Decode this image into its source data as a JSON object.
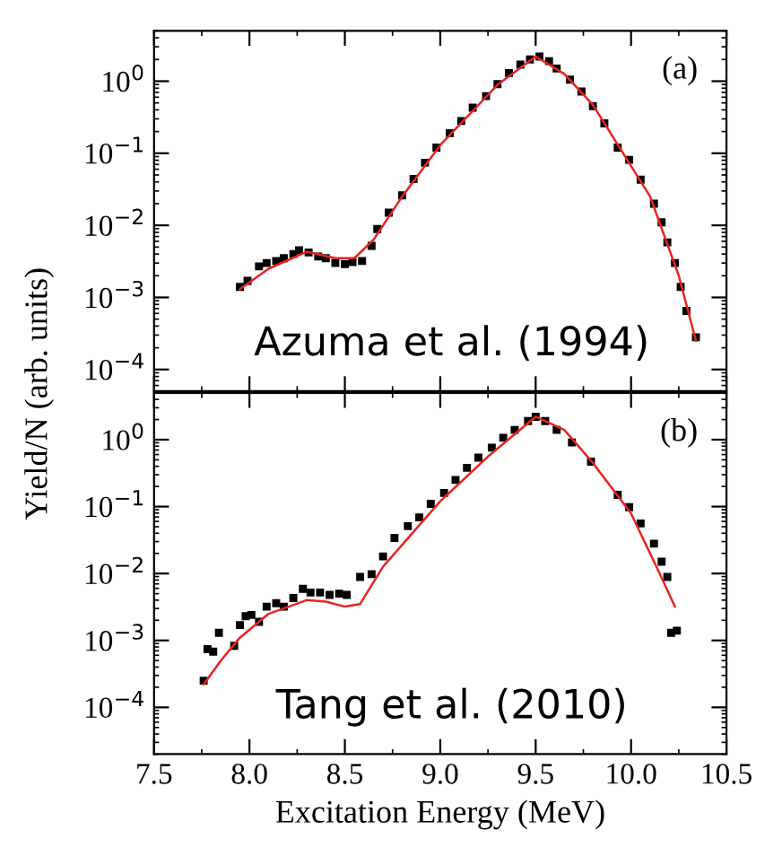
{
  "chart_data": [
    {
      "type": "scatter",
      "ylabel": "Yield/N (arb. units)",
      "annotations": [
        "(a)",
        "Azuma et al. (1994)"
      ],
      "log": "y",
      "tick_labels": "y",
      "xlim": [
        7.5,
        10.5
      ],
      "xticks": [
        {
          "value": 7.5,
          "label": null
        },
        {
          "value": 8,
          "label": null
        },
        {
          "value": 8.5,
          "label": null
        },
        {
          "value": 9,
          "label": null
        },
        {
          "value": 9.5,
          "label": null
        },
        {
          "value": 10,
          "label": null
        },
        {
          "value": 10.5,
          "label": null
        }
      ],
      "ylim": [
        5e-05,
        5
      ],
      "yticks": [
        {
          "value": 0.0001,
          "label": "10$^{−4}$"
        },
        {
          "value": 0.001,
          "label": "10$^{−3}$"
        },
        {
          "value": 0.01,
          "label": "10$^{−2}$"
        },
        {
          "value": 0.1,
          "label": "10$^{−1}$"
        },
        {
          "value": 1,
          "label": "10$^{0}$"
        }
      ],
      "series": [
        {
          "marker": "square",
          "color": "#000000",
          "x": [
            7.95,
            7.99,
            8.05,
            8.09,
            8.14,
            8.18,
            8.23,
            8.26,
            8.31,
            8.36,
            8.4,
            8.45,
            8.5,
            8.54,
            8.59,
            8.64,
            8.67,
            8.73,
            8.8,
            8.86,
            8.92,
            8.98,
            9.05,
            9.11,
            9.17,
            9.24,
            9.3,
            9.36,
            9.42,
            9.47,
            9.52,
            9.57,
            9.61,
            9.68,
            9.74,
            9.8,
            9.86,
            9.93,
            9.99,
            10.05,
            10.12,
            10.16,
            10.19,
            10.23,
            10.26,
            10.29,
            10.34
          ],
          "values": [
            0.0014,
            0.0017,
            0.0027,
            0.003,
            0.0032,
            0.0035,
            0.004,
            0.0045,
            0.0042,
            0.0037,
            0.0035,
            0.003,
            0.0029,
            0.0031,
            0.0032,
            0.0052,
            0.0089,
            0.015,
            0.026,
            0.044,
            0.074,
            0.12,
            0.19,
            0.28,
            0.43,
            0.62,
            0.91,
            1.3,
            1.7,
            2.0,
            2.2,
            1.9,
            1.5,
            1.05,
            0.72,
            0.45,
            0.26,
            0.12,
            0.081,
            0.043,
            0.02,
            0.011,
            0.0058,
            0.003,
            0.0014,
            0.00065,
            0.00028
          ]
        },
        {
          "type": "line",
          "color": "#e8231f",
          "x": [
            7.95,
            8.1,
            8.3,
            8.45,
            8.55,
            8.65,
            8.8,
            9.0,
            9.3,
            9.5,
            9.65,
            9.8,
            10.1,
            10.25,
            10.34
          ],
          "values": [
            0.0013,
            0.0025,
            0.0043,
            0.0035,
            0.0035,
            0.0063,
            0.025,
            0.13,
            0.89,
            2.2,
            1.26,
            0.47,
            0.025,
            0.002,
            0.00025
          ]
        }
      ]
    },
    {
      "type": "scatter",
      "xlabel": "Excitation Energy (MeV)",
      "annotations": [
        "(b)",
        "Tang et al. (2010)"
      ],
      "log": "y",
      "xlim": [
        7.5,
        10.5
      ],
      "xticks": [
        7.5,
        {
          "value": 8,
          "label": "8.0"
        },
        8.5,
        {
          "value": 9,
          "label": "9.0"
        },
        9.5,
        {
          "value": 10,
          "label": "10.0"
        },
        10.5
      ],
      "ylim": [
        2e-05,
        5
      ],
      "yticks": [
        {
          "value": 0.0001,
          "label": "10$^{−4}$"
        },
        {
          "value": 0.001,
          "label": "10$^{−3}$"
        },
        {
          "value": 0.01,
          "label": "10$^{−2}$"
        },
        {
          "value": 0.1,
          "label": "10$^{−1}$"
        },
        {
          "value": 1,
          "label": "10$^{0}$"
        }
      ],
      "series": [
        {
          "marker": "square",
          "color": "#000000",
          "x": [
            7.76,
            7.78,
            7.81,
            7.84,
            7.92,
            7.95,
            7.98,
            8.01,
            8.05,
            8.09,
            8.14,
            8.18,
            8.23,
            8.28,
            8.32,
            8.37,
            8.42,
            8.47,
            8.51,
            8.58,
            8.64,
            8.7,
            8.76,
            8.83,
            8.89,
            8.95,
            9.02,
            9.08,
            9.14,
            9.2,
            9.27,
            9.33,
            9.39,
            9.46,
            9.5,
            9.55,
            9.61,
            9.69,
            9.79,
            9.93,
            9.99,
            10.05,
            10.12,
            10.16,
            10.19,
            10.21,
            10.24
          ],
          "values": [
            0.00025,
            0.00074,
            0.00068,
            0.0013,
            0.00083,
            0.0017,
            0.0023,
            0.0024,
            0.0019,
            0.0032,
            0.0036,
            0.0032,
            0.0043,
            0.0059,
            0.0052,
            0.0052,
            0.0048,
            0.005,
            0.0048,
            0.0089,
            0.0098,
            0.018,
            0.034,
            0.051,
            0.069,
            0.11,
            0.16,
            0.25,
            0.38,
            0.54,
            0.76,
            1.07,
            1.4,
            1.9,
            2.2,
            1.9,
            1.4,
            0.91,
            0.47,
            0.15,
            0.098,
            0.056,
            0.028,
            0.015,
            0.0089,
            0.0013,
            0.0014
          ]
        },
        {
          "type": "line",
          "color": "#e8231f",
          "x": [
            7.76,
            7.85,
            7.95,
            8.1,
            8.3,
            8.4,
            8.5,
            8.58,
            8.7,
            9.0,
            9.25,
            9.5,
            9.65,
            9.8,
            10.0,
            10.15,
            10.23
          ],
          "values": [
            0.00022,
            0.0005,
            0.0011,
            0.0025,
            0.004,
            0.0038,
            0.0032,
            0.0035,
            0.0126,
            0.12,
            0.56,
            2.2,
            1.4,
            0.45,
            0.079,
            0.01,
            0.0032
          ]
        }
      ]
    }
  ]
}
